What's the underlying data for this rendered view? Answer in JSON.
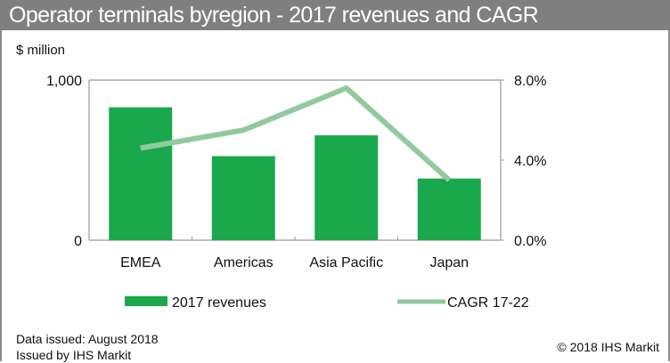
{
  "title": "Operator terminals byregion - 2017 revenues and CAGR",
  "chart_data": {
    "type": "bar",
    "title": "Operator terminals byregion - 2017 revenues and CAGR",
    "categories": [
      "EMEA",
      "Americas",
      "Asia Pacific",
      "Japan"
    ],
    "ylabel": "$ million",
    "ylim": [
      0,
      1000
    ],
    "y_ticks": [
      "0",
      "1,000"
    ],
    "y2lim": [
      0,
      8
    ],
    "y2_ticks": [
      "0.0%",
      "4.0%",
      "8.0%"
    ],
    "grid": false,
    "legend_position": "bottom",
    "series": [
      {
        "name": "2017 revenues",
        "type": "bar",
        "axis": "left",
        "color": "#19a84c",
        "values": [
          830,
          525,
          655,
          385
        ]
      },
      {
        "name": "CAGR 17-22",
        "type": "line",
        "axis": "right",
        "color": "#93c99e",
        "values": [
          4.6,
          5.5,
          7.6,
          3.0
        ]
      }
    ]
  },
  "footer": {
    "data_issued": "Data issued: August 2018",
    "issued_by": "Issued by IHS Markit",
    "copyright": "© 2018  IHS Markit"
  }
}
